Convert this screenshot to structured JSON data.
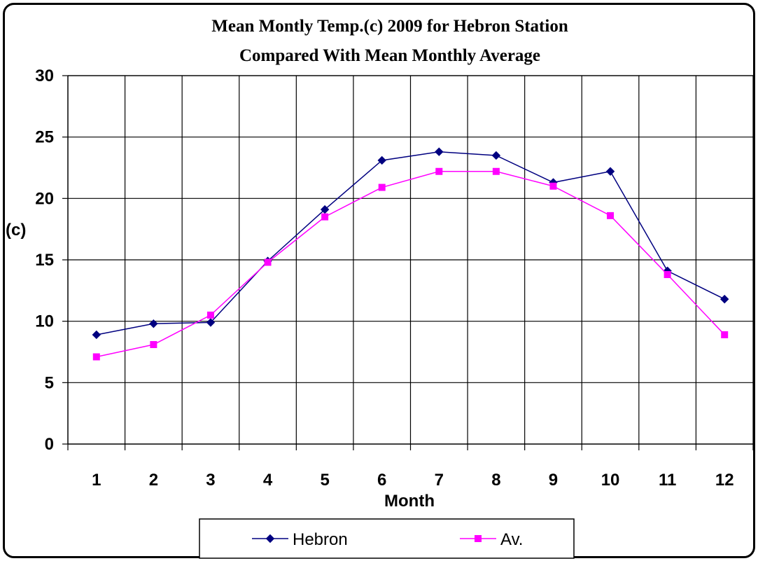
{
  "chart_data": {
    "type": "line",
    "title_lines": [
      "Mean Montly Temp.(c) 2009 for Hebron Station",
      "Compared With Mean Monthly Average"
    ],
    "xlabel": "Month",
    "ylabel": "(c)",
    "x": [
      "1",
      "2",
      "3",
      "4",
      "5",
      "6",
      "7",
      "8",
      "9",
      "10",
      "11",
      "12"
    ],
    "yticks": [
      "0",
      "5",
      "10",
      "15",
      "20",
      "25",
      "30"
    ],
    "ylim": [
      0,
      30
    ],
    "grid": true,
    "legend_position": "bottom",
    "series": [
      {
        "name": "Hebron",
        "color": "#000080",
        "marker": "diamond",
        "values": [
          8.9,
          9.8,
          9.9,
          14.9,
          19.1,
          23.1,
          23.8,
          23.5,
          21.3,
          22.2,
          14.1,
          11.8
        ]
      },
      {
        "name": "Av.",
        "color": "#ff00ff",
        "marker": "square",
        "values": [
          7.1,
          8.1,
          10.5,
          14.8,
          18.5,
          20.9,
          22.2,
          22.2,
          21.0,
          18.6,
          13.8,
          8.9
        ]
      }
    ]
  }
}
